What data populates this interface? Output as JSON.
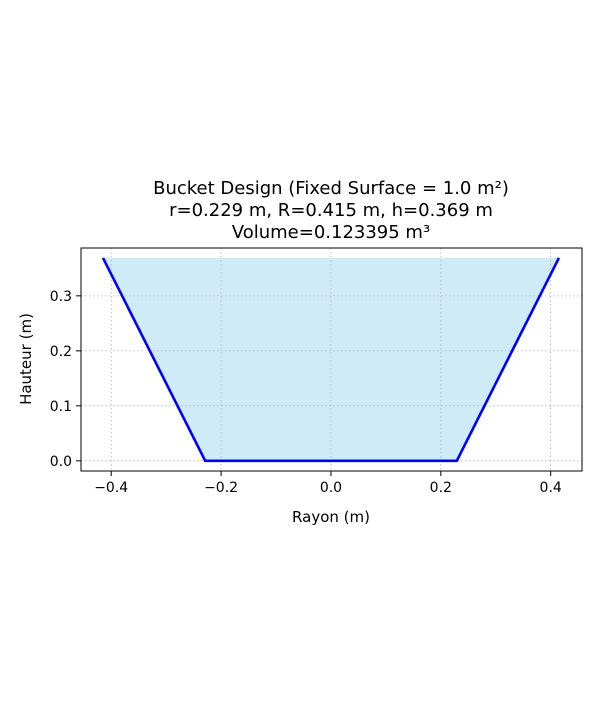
{
  "chart_data": {
    "type": "line",
    "title_lines": [
      "Bucket Design (Fixed Surface = 1.0 m²)",
      "r=0.229 m, R=0.415 m, h=0.369 m",
      "Volume=0.123395 m³"
    ],
    "xlabel": "Rayon (m)",
    "ylabel": "Hauteur (m)",
    "xlim": [
      -0.455,
      0.457
    ],
    "ylim": [
      -0.0185,
      0.387
    ],
    "xticks": [
      -0.4,
      -0.2,
      0.0,
      0.2,
      0.4
    ],
    "xtick_labels": [
      "−0.4",
      "−0.2",
      "0.0",
      "0.2",
      "0.4"
    ],
    "yticks": [
      0.0,
      0.1,
      0.2,
      0.3
    ],
    "ytick_labels": [
      "0.0",
      "0.1",
      "0.2",
      "0.3"
    ],
    "grid": true,
    "grid_style": "dotted",
    "series": [
      {
        "x": [
          -0.415,
          -0.229,
          0.229,
          0.415
        ],
        "y": [
          0.369,
          0.0,
          0.0,
          0.369
        ],
        "color": "#0000ff"
      }
    ],
    "fill": {
      "x": [
        -0.415,
        -0.229,
        0.229,
        0.415
      ],
      "y": [
        0.369,
        0.0,
        0.0,
        0.369
      ],
      "top": 0.369,
      "color": "#87ceeb",
      "alpha": 0.4
    }
  }
}
